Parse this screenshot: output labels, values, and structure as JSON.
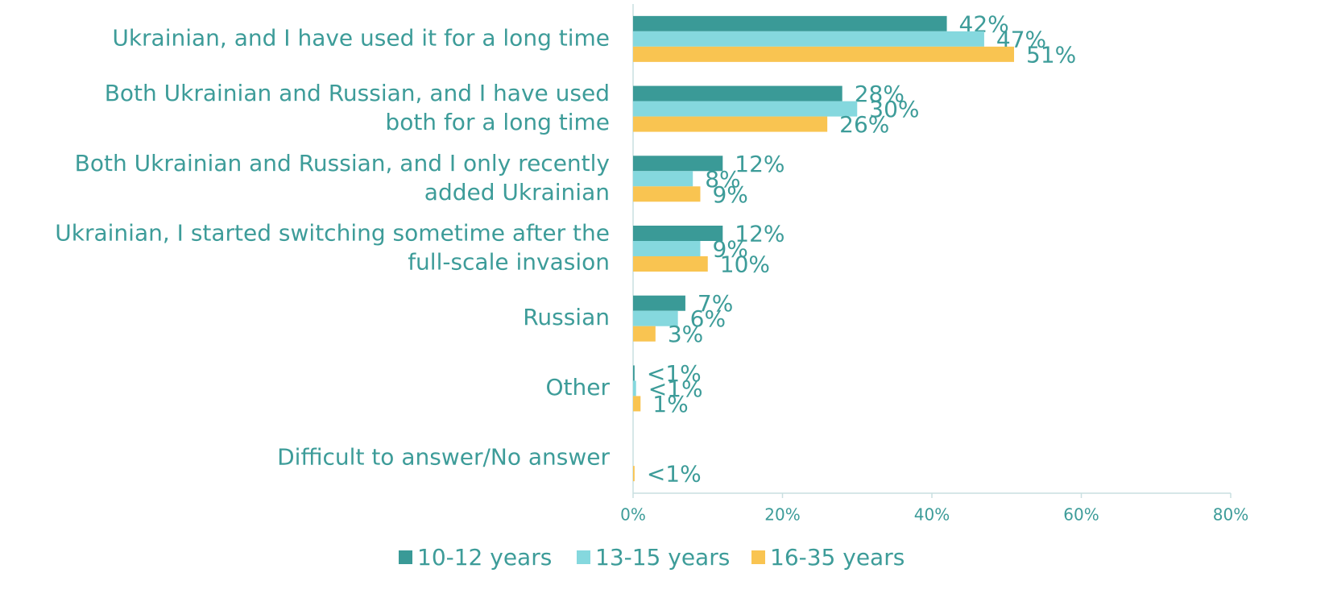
{
  "chart_data": {
    "type": "bar",
    "orientation": "horizontal",
    "categories": [
      "Ukrainian, and I have used it for a long time",
      "Both Ukrainian and Russian, and I have used\nboth for a long time",
      "Both Ukrainian and Russian, and I only recently\nadded Ukrainian",
      "Ukrainian, I started switching sometime after the\nfull-scale invasion",
      "Russian",
      "Other",
      "Difficult to answer/No answer"
    ],
    "series": [
      {
        "name": "10-12 years",
        "color": "#3a9a97",
        "values": [
          42,
          28,
          12,
          12,
          7,
          0.2,
          null
        ],
        "value_labels": [
          "42%",
          "28%",
          "12%",
          "12%",
          "7%",
          "<1%",
          null
        ]
      },
      {
        "name": "13-15 years",
        "color": "#85d8de",
        "values": [
          47,
          30,
          8,
          9,
          6,
          0.4,
          null
        ],
        "value_labels": [
          "47%",
          "30%",
          "8%",
          "9%",
          "6%",
          "<1%",
          null
        ]
      },
      {
        "name": "16-35 years",
        "color": "#f9c451",
        "values": [
          51,
          26,
          9,
          10,
          3,
          1,
          0.2
        ],
        "value_labels": [
          "51%",
          "26%",
          "9%",
          "10%",
          "3%",
          "1%",
          "<1%"
        ]
      }
    ],
    "xlim": [
      0,
      80
    ],
    "xticks": [
      {
        "value": 0,
        "label": "0%"
      },
      {
        "value": 20,
        "label": "20%"
      },
      {
        "value": 40,
        "label": "40%"
      },
      {
        "value": 60,
        "label": "60%"
      },
      {
        "value": 80,
        "label": "80%"
      }
    ],
    "legend": "bottom"
  }
}
